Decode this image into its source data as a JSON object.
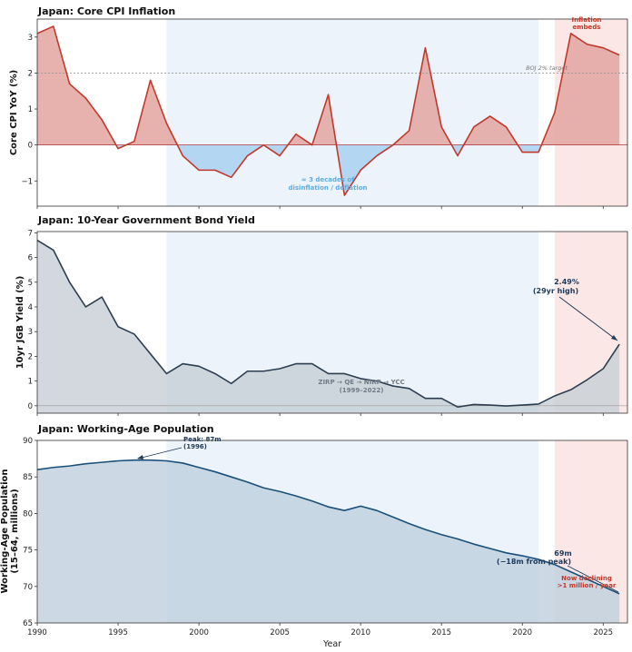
{
  "colors": {
    "cpi_line": "#c0392b",
    "cpi_fill_pos": "#e3a5a0",
    "cpi_fill_neg": "#a9d1f0",
    "jgb_line": "#2c3e50",
    "jgb_fill": "#c7ced6",
    "pop_line": "#1a4f7a",
    "pop_fill": "#bfd0de",
    "span_blue": "#eaf2fb",
    "span_red": "#fbe5e3",
    "ann_blue": "#5dade2",
    "ann_gray": "#707b86",
    "ann_red": "#c0392b",
    "ann_navy": "#1f3a5a"
  },
  "chart_data": [
    {
      "type": "area",
      "title": "Japan: Core CPI Inflation",
      "ylabel": "Core CPI YoY (%)",
      "xlabel": "",
      "xlim": [
        1990,
        2026.5
      ],
      "ylim": [
        -1.7,
        3.5
      ],
      "yticks": [
        -1,
        0,
        1,
        2,
        3
      ],
      "grid": false,
      "shaded_spans": [
        [
          1998,
          2021
        ],
        [
          2022,
          2026.5
        ]
      ],
      "target_line": {
        "value": 2,
        "label": "BOJ 2% target"
      },
      "x": [
        1990,
        1991,
        1992,
        1993,
        1994,
        1995,
        1996,
        1997,
        1998,
        1999,
        2000,
        2001,
        2002,
        2003,
        2004,
        2005,
        2006,
        2007,
        2008,
        2009,
        2010,
        2011,
        2012,
        2013,
        2014,
        2015,
        2016,
        2017,
        2018,
        2019,
        2020,
        2021,
        2022,
        2023,
        2024,
        2025,
        2026
      ],
      "values": [
        3.1,
        3.3,
        1.7,
        1.3,
        0.7,
        -0.1,
        0.1,
        1.8,
        0.6,
        -0.3,
        -0.7,
        -0.7,
        -0.9,
        -0.3,
        0.0,
        -0.3,
        0.3,
        0.0,
        1.4,
        -1.4,
        -0.7,
        -0.3,
        0.0,
        0.4,
        2.7,
        0.5,
        -0.3,
        0.5,
        0.8,
        0.5,
        -0.2,
        -0.2,
        0.9,
        3.1,
        2.8,
        2.7,
        2.5
      ],
      "annotations": [
        {
          "text": "≈ 3 decades of",
          "x": 2008,
          "y": -0.95
        },
        {
          "text": "disinflation / deflation",
          "x": 2008,
          "y": -1.15
        },
        {
          "text": "Inflation",
          "x": 2024,
          "y": 3.55
        },
        {
          "text": "embeds",
          "x": 2024,
          "y": 3.35
        }
      ]
    },
    {
      "type": "area",
      "title": "Japan: 10-Year Government Bond Yield",
      "ylabel": "10yr JGB Yield (%)",
      "xlabel": "",
      "xlim": [
        1990,
        2026.5
      ],
      "ylim": [
        -0.3,
        7.05
      ],
      "yticks": [
        0,
        1,
        2,
        3,
        4,
        5,
        6,
        7
      ],
      "grid": false,
      "shaded_spans": [
        [
          1998,
          2021
        ],
        [
          2022,
          2026.5
        ]
      ],
      "x": [
        1990,
        1991,
        1992,
        1993,
        1994,
        1995,
        1996,
        1997,
        1998,
        1999,
        2000,
        2001,
        2002,
        2003,
        2004,
        2005,
        2006,
        2007,
        2008,
        2009,
        2010,
        2011,
        2012,
        2013,
        2014,
        2015,
        2016,
        2017,
        2018,
        2019,
        2020,
        2021,
        2022,
        2023,
        2024,
        2025,
        2026
      ],
      "values": [
        6.7,
        6.3,
        5.0,
        4.0,
        4.4,
        3.2,
        2.9,
        2.1,
        1.3,
        1.7,
        1.6,
        1.3,
        0.9,
        1.4,
        1.4,
        1.5,
        1.7,
        1.7,
        1.3,
        1.3,
        1.1,
        1.0,
        0.8,
        0.7,
        0.3,
        0.3,
        -0.05,
        0.05,
        0.03,
        -0.01,
        0.03,
        0.07,
        0.4,
        0.65,
        1.05,
        1.5,
        2.49
      ],
      "annotations": [
        {
          "text": "2.49%",
          "x": 2023.2,
          "y": 4.9
        },
        {
          "text": "(29yr high)",
          "x": 2023.2,
          "y": 4.55
        },
        {
          "text": "ZIRP → QE → NIRP → YCC",
          "x": 2010,
          "y": 0.85
        },
        {
          "text": "(1999–2022)",
          "x": 2010,
          "y": 0.55
        }
      ]
    },
    {
      "type": "area",
      "title": "Japan: Working-Age Population",
      "ylabel": "Working-Age Population",
      "ylabel_line2": "(15–64, millions)",
      "xlabel": "Year",
      "xlim": [
        1990,
        2026.5
      ],
      "ylim": [
        65,
        90
      ],
      "yticks": [
        65,
        70,
        75,
        80,
        85,
        90
      ],
      "xticks": [
        1990,
        1995,
        2000,
        2005,
        2010,
        2015,
        2020,
        2025
      ],
      "grid": false,
      "shaded_spans": [
        [
          1998,
          2021
        ],
        [
          2022,
          2026.5
        ]
      ],
      "x": [
        1990,
        1991,
        1992,
        1993,
        1994,
        1995,
        1996,
        1997,
        1998,
        1999,
        2000,
        2001,
        2002,
        2003,
        2004,
        2005,
        2006,
        2007,
        2008,
        2009,
        2010,
        2011,
        2012,
        2013,
        2014,
        2015,
        2016,
        2017,
        2018,
        2019,
        2020,
        2021,
        2022,
        2023,
        2024,
        2025,
        2026
      ],
      "values": [
        86.0,
        86.3,
        86.5,
        86.8,
        87.0,
        87.2,
        87.3,
        87.3,
        87.2,
        86.9,
        86.3,
        85.7,
        85.0,
        84.3,
        83.5,
        83.0,
        82.4,
        81.7,
        80.9,
        80.4,
        81.0,
        80.4,
        79.5,
        78.6,
        77.8,
        77.1,
        76.5,
        75.8,
        75.2,
        74.6,
        74.2,
        73.7,
        73.0,
        72.0,
        71.0,
        70.0,
        69.0
      ],
      "annotations": [
        {
          "text": "Peak: 87m",
          "x": 1999.9,
          "y": 89.6
        },
        {
          "text": "(1996)",
          "x": 1999.9,
          "y": 88.6
        },
        {
          "text": "69m",
          "x": 2022.5,
          "y": 72.3
        },
        {
          "text": "(−18m from peak)",
          "x": 2022.5,
          "y": 71.0
        },
        {
          "text": "Now declining",
          "x": 2024.2,
          "y": 70.9
        },
        {
          "text": ">1 million / year",
          "x": 2024.2,
          "y": 69.9
        }
      ]
    }
  ]
}
